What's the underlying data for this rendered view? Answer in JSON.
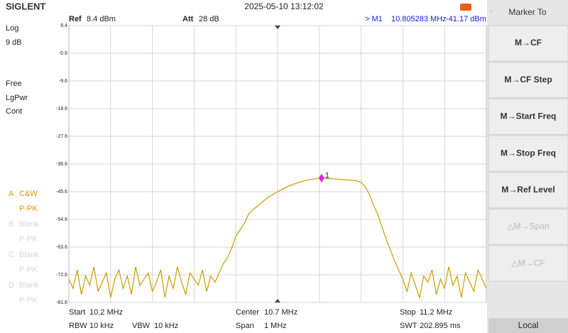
{
  "header": {
    "brand": "SIGLENT",
    "datetime": "2025-05-10 13:12:02"
  },
  "info": {
    "ref_label": "Ref",
    "ref": "8.4 dBm",
    "att_label": "Att",
    "att": "28 dB",
    "marker_prefix": "> M1",
    "marker_freq": "10.805283 MHz",
    "marker_level": "-41.17 dBm"
  },
  "left_panel": {
    "scale": "Log",
    "scale_div": "9 dB",
    "trigger": "Free",
    "detector": "LgPwr",
    "sweep": "Cont",
    "traces": [
      {
        "letter": "A",
        "mode": "C&W",
        "det": "P-PK",
        "active": true
      },
      {
        "letter": "B",
        "mode": "Blank",
        "det": "P-PK",
        "active": false
      },
      {
        "letter": "C",
        "mode": "Blank",
        "det": "P-PK",
        "active": false
      },
      {
        "letter": "D",
        "mode": "Blank",
        "det": "P-PK",
        "active": false
      }
    ]
  },
  "footer": {
    "start_label": "Start",
    "start": "10.2 MHz",
    "center_label": "Center",
    "center": "10.7 MHz",
    "stop_label": "Stop",
    "stop": "11.2 MHz",
    "rbw_label": "RBW",
    "rbw": "10 kHz",
    "vbw_label": "VBW",
    "vbw": "10 kHz",
    "span_label": "Span",
    "span": "1 MHz",
    "swt_label": "SWT",
    "swt": "202.895 ms"
  },
  "softkeys": {
    "title": "Marker To",
    "items": [
      {
        "label": "M→CF",
        "enabled": true
      },
      {
        "label": "M→CF Step",
        "enabled": true
      },
      {
        "label": "M→Start Freq",
        "enabled": true
      },
      {
        "label": "M→Stop Freq",
        "enabled": true
      },
      {
        "label": "M→Ref Level",
        "enabled": true
      },
      {
        "label": "△M→Span",
        "enabled": false
      },
      {
        "label": "△M→CF",
        "enabled": false
      }
    ],
    "bottom": "Local"
  },
  "chart_data": {
    "type": "line",
    "color": "#c89b00",
    "xlim": [
      10.2,
      11.2
    ],
    "ylim": [
      -81.6,
      8.4
    ],
    "yticks": [
      8.4,
      -0.6,
      -9.6,
      -18.6,
      -27.6,
      -36.6,
      -45.6,
      -54.6,
      -63.6,
      -72.6,
      -81.6
    ],
    "grid": true,
    "x": [
      10.2,
      10.21,
      10.22,
      10.23,
      10.24,
      10.25,
      10.26,
      10.27,
      10.28,
      10.29,
      10.3,
      10.31,
      10.32,
      10.33,
      10.34,
      10.35,
      10.36,
      10.37,
      10.38,
      10.39,
      10.4,
      10.41,
      10.42,
      10.43,
      10.44,
      10.45,
      10.46,
      10.47,
      10.48,
      10.49,
      10.5,
      10.51,
      10.52,
      10.53,
      10.54,
      10.55,
      10.56,
      10.57,
      10.58,
      10.59,
      10.6,
      10.61,
      10.62,
      10.63,
      10.64,
      10.65,
      10.66,
      10.67,
      10.68,
      10.69,
      10.7,
      10.71,
      10.72,
      10.73,
      10.74,
      10.75,
      10.76,
      10.77,
      10.78,
      10.79,
      10.8,
      10.81,
      10.82,
      10.83,
      10.84,
      10.85,
      10.86,
      10.87,
      10.88,
      10.89,
      10.9,
      10.91,
      10.92,
      10.93,
      10.94,
      10.95,
      10.96,
      10.97,
      10.98,
      10.99,
      11.0,
      11.01,
      11.02,
      11.03,
      11.04,
      11.05,
      11.06,
      11.07,
      11.08,
      11.09,
      11.1,
      11.11,
      11.12,
      11.13,
      11.14,
      11.15,
      11.16,
      11.17,
      11.18,
      11.19,
      11.2
    ],
    "values": [
      -74,
      -77,
      -71,
      -79,
      -73,
      -76,
      -70,
      -78,
      -75,
      -72,
      -80,
      -74,
      -71,
      -77,
      -73,
      -79,
      -70,
      -76,
      -74,
      -72,
      -78,
      -75,
      -71,
      -80,
      -73,
      -77,
      -70,
      -75,
      -79,
      -72,
      -74,
      -76,
      -71,
      -78,
      -73,
      -75,
      -72,
      -69,
      -67,
      -64,
      -60,
      -58,
      -56,
      -53,
      -51.5,
      -50.5,
      -49.3,
      -48.2,
      -47.2,
      -46.4,
      -45.6,
      -44.9,
      -44.2,
      -43.6,
      -43.1,
      -42.6,
      -42.2,
      -41.9,
      -41.6,
      -41.4,
      -41.2,
      -41.2,
      -41.3,
      -41.4,
      -41.5,
      -41.6,
      -41.7,
      -41.8,
      -41.9,
      -42.1,
      -42.6,
      -44,
      -46.5,
      -50,
      -53,
      -57,
      -61,
      -64.5,
      -68,
      -71,
      -74,
      -78,
      -72,
      -76,
      -80,
      -73,
      -75,
      -71,
      -79,
      -74,
      -77,
      -70,
      -76,
      -73,
      -80,
      -72,
      -75,
      -78,
      -71,
      -74,
      -77
    ],
    "marker": {
      "label": "1",
      "x": 10.805283,
      "y": -41.17,
      "color": "#e81ce8"
    }
  }
}
